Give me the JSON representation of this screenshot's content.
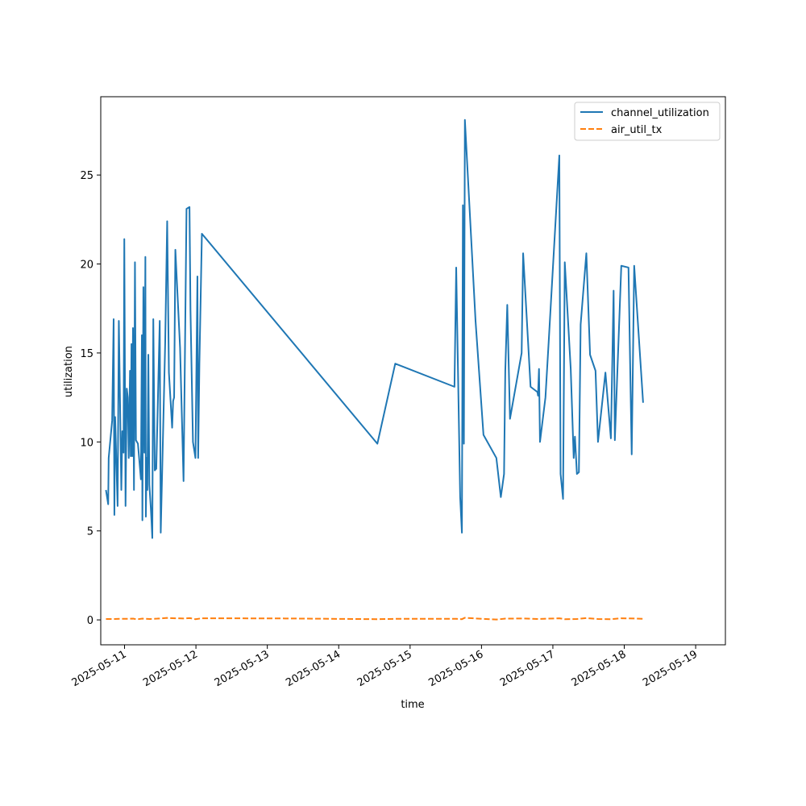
{
  "chart_data": {
    "type": "line",
    "title": "",
    "xlabel": "time",
    "ylabel": "utilization",
    "x_type": "date",
    "xlim": [
      "2025-05-10T16:00",
      "2025-05-19T10:00"
    ],
    "ylim": [
      -1.4,
      29.4
    ],
    "x_ticks": [
      "2025-05-11",
      "2025-05-12",
      "2025-05-13",
      "2025-05-14",
      "2025-05-15",
      "2025-05-16",
      "2025-05-17",
      "2025-05-18",
      "2025-05-19"
    ],
    "y_ticks": [
      0,
      5,
      10,
      15,
      20,
      25
    ],
    "grid": false,
    "legend": {
      "position": "top-right"
    },
    "colors": {
      "channel_utilization": "#1f77b4",
      "air_util_tx": "#ff7f0e"
    },
    "series": [
      {
        "name": "channel_utilization",
        "style": "solid",
        "points": [
          [
            "2025-05-10T17:45",
            7.3
          ],
          [
            "2025-05-10T18:30",
            6.5
          ],
          [
            "2025-05-10T18:40",
            9.1
          ],
          [
            "2025-05-10T19:50",
            11.2
          ],
          [
            "2025-05-10T20:20",
            16.9
          ],
          [
            "2025-05-10T20:35",
            5.9
          ],
          [
            "2025-05-10T20:50",
            11.4
          ],
          [
            "2025-05-10T21:40",
            6.4
          ],
          [
            "2025-05-10T22:05",
            16.8
          ],
          [
            "2025-05-10T22:55",
            7.3
          ],
          [
            "2025-05-10T23:15",
            10.6
          ],
          [
            "2025-05-10T23:40",
            9.4
          ],
          [
            "2025-05-10T23:55",
            21.4
          ],
          [
            "2025-05-11T00:20",
            6.4
          ],
          [
            "2025-05-11T00:45",
            13.0
          ],
          [
            "2025-05-11T01:05",
            12.5
          ],
          [
            "2025-05-11T01:25",
            9.1
          ],
          [
            "2025-05-11T01:50",
            14.0
          ],
          [
            "2025-05-11T02:05",
            9.2
          ],
          [
            "2025-05-11T02:20",
            15.5
          ],
          [
            "2025-05-11T02:35",
            9.2
          ],
          [
            "2025-05-11T02:50",
            16.4
          ],
          [
            "2025-05-11T03:10",
            7.3
          ],
          [
            "2025-05-11T03:30",
            20.1
          ],
          [
            "2025-05-11T03:50",
            10.1
          ],
          [
            "2025-05-11T04:30",
            9.9
          ],
          [
            "2025-05-11T05:30",
            7.9
          ],
          [
            "2025-05-11T05:50",
            16.0
          ],
          [
            "2025-05-11T06:00",
            5.6
          ],
          [
            "2025-05-11T06:20",
            18.7
          ],
          [
            "2025-05-11T06:40",
            9.4
          ],
          [
            "2025-05-11T07:00",
            20.4
          ],
          [
            "2025-05-11T07:10",
            5.8
          ],
          [
            "2025-05-11T07:25",
            9.1
          ],
          [
            "2025-05-11T07:40",
            7.3
          ],
          [
            "2025-05-11T08:00",
            14.9
          ],
          [
            "2025-05-11T08:20",
            7.6
          ],
          [
            "2025-05-11T08:50",
            6.3
          ],
          [
            "2025-05-11T09:05",
            5.5
          ],
          [
            "2025-05-11T09:20",
            4.6
          ],
          [
            "2025-05-11T09:40",
            16.9
          ],
          [
            "2025-05-11T10:10",
            8.4
          ],
          [
            "2025-05-11T10:40",
            8.5
          ],
          [
            "2025-05-11T11:50",
            16.8
          ],
          [
            "2025-05-11T12:10",
            4.9
          ],
          [
            "2025-05-11T13:40",
            15.6
          ],
          [
            "2025-05-11T14:20",
            22.4
          ],
          [
            "2025-05-11T14:55",
            13.9
          ],
          [
            "2025-05-11T16:00",
            10.8
          ],
          [
            "2025-05-11T16:20",
            12.3
          ],
          [
            "2025-05-11T16:40",
            12.5
          ],
          [
            "2025-05-11T17:05",
            20.8
          ],
          [
            "2025-05-11T18:40",
            15.3
          ],
          [
            "2025-05-11T19:50",
            7.8
          ],
          [
            "2025-05-11T20:50",
            23.1
          ],
          [
            "2025-05-11T21:50",
            23.2
          ],
          [
            "2025-05-11T22:10",
            17.4
          ],
          [
            "2025-05-11T23:00",
            10.0
          ],
          [
            "2025-05-11T23:50",
            9.1
          ],
          [
            "2025-05-12T00:30",
            19.3
          ],
          [
            "2025-05-12T00:45",
            9.1
          ],
          [
            "2025-05-12T01:10",
            14.4
          ],
          [
            "2025-05-12T02:00",
            21.7
          ],
          [
            "2025-05-14T13:00",
            9.9
          ],
          [
            "2025-05-14T19:00",
            14.4
          ],
          [
            "2025-05-15T14:55",
            13.1
          ],
          [
            "2025-05-15T15:30",
            19.8
          ],
          [
            "2025-05-15T16:50",
            6.9
          ],
          [
            "2025-05-15T17:25",
            4.9
          ],
          [
            "2025-05-15T17:45",
            23.3
          ],
          [
            "2025-05-15T18:05",
            9.9
          ],
          [
            "2025-05-15T18:25",
            28.1
          ],
          [
            "2025-05-15T22:00",
            16.8
          ],
          [
            "2025-05-16T00:40",
            10.4
          ],
          [
            "2025-05-16T05:00",
            9.1
          ],
          [
            "2025-05-16T06:30",
            6.9
          ],
          [
            "2025-05-16T07:35",
            8.2
          ],
          [
            "2025-05-16T08:00",
            14.0
          ],
          [
            "2025-05-16T08:40",
            17.7
          ],
          [
            "2025-05-16T09:35",
            11.3
          ],
          [
            "2025-05-16T13:30",
            15.0
          ],
          [
            "2025-05-16T14:00",
            20.6
          ],
          [
            "2025-05-16T16:30",
            13.1
          ],
          [
            "2025-05-16T18:50",
            12.8
          ],
          [
            "2025-05-16T19:00",
            12.6
          ],
          [
            "2025-05-16T19:20",
            14.1
          ],
          [
            "2025-05-16T19:40",
            10.0
          ],
          [
            "2025-05-16T21:30",
            12.5
          ],
          [
            "2025-05-16T22:35",
            15.6
          ],
          [
            "2025-05-17T02:10",
            26.1
          ],
          [
            "2025-05-17T02:35",
            8.2
          ],
          [
            "2025-05-17T03:25",
            6.8
          ],
          [
            "2025-05-17T04:00",
            20.1
          ],
          [
            "2025-05-17T06:00",
            14.1
          ],
          [
            "2025-05-17T07:00",
            9.1
          ],
          [
            "2025-05-17T07:25",
            10.3
          ],
          [
            "2025-05-17T08:05",
            8.2
          ],
          [
            "2025-05-17T08:45",
            8.3
          ],
          [
            "2025-05-17T09:20",
            16.6
          ],
          [
            "2025-05-17T11:15",
            20.6
          ],
          [
            "2025-05-17T12:30",
            14.9
          ],
          [
            "2025-05-17T14:20",
            14.0
          ],
          [
            "2025-05-17T15:10",
            10.0
          ],
          [
            "2025-05-17T17:40",
            13.9
          ],
          [
            "2025-05-17T19:30",
            10.2
          ],
          [
            "2025-05-17T20:25",
            18.5
          ],
          [
            "2025-05-17T20:50",
            10.1
          ],
          [
            "2025-05-17T23:00",
            19.9
          ],
          [
            "2025-05-18T01:25",
            19.8
          ],
          [
            "2025-05-18T02:30",
            9.3
          ],
          [
            "2025-05-18T03:20",
            19.9
          ],
          [
            "2025-05-18T06:20",
            12.2
          ]
        ]
      },
      {
        "name": "air_util_tx",
        "style": "dashed",
        "points": [
          [
            "2025-05-10T17:45",
            0.05
          ],
          [
            "2025-05-10T20:00",
            0.05
          ],
          [
            "2025-05-10T22:30",
            0.06
          ],
          [
            "2025-05-11T00:30",
            0.06
          ],
          [
            "2025-05-11T03:00",
            0.07
          ],
          [
            "2025-05-11T04:00",
            0.03
          ],
          [
            "2025-05-11T06:00",
            0.07
          ],
          [
            "2025-05-11T08:30",
            0.05
          ],
          [
            "2025-05-11T11:00",
            0.07
          ],
          [
            "2025-05-11T14:20",
            0.11
          ],
          [
            "2025-05-11T17:00",
            0.09
          ],
          [
            "2025-05-11T20:00",
            0.08
          ],
          [
            "2025-05-11T22:00",
            0.1
          ],
          [
            "2025-05-11T23:50",
            0.04
          ],
          [
            "2025-05-12T02:00",
            0.09
          ],
          [
            "2025-05-12T08:00",
            0.09
          ],
          [
            "2025-05-13T06:00",
            0.08
          ],
          [
            "2025-05-14T13:00",
            0.04
          ],
          [
            "2025-05-14T19:00",
            0.06
          ],
          [
            "2025-05-15T15:30",
            0.06
          ],
          [
            "2025-05-15T17:25",
            0.04
          ],
          [
            "2025-05-15T18:25",
            0.12
          ],
          [
            "2025-05-15T22:00",
            0.08
          ],
          [
            "2025-05-16T05:00",
            0.02
          ],
          [
            "2025-05-16T08:00",
            0.07
          ],
          [
            "2025-05-16T14:00",
            0.08
          ],
          [
            "2025-05-16T19:00",
            0.05
          ],
          [
            "2025-05-17T02:10",
            0.09
          ],
          [
            "2025-05-17T04:00",
            0.04
          ],
          [
            "2025-05-17T08:05",
            0.05
          ],
          [
            "2025-05-17T11:15",
            0.1
          ],
          [
            "2025-05-17T15:10",
            0.05
          ],
          [
            "2025-05-17T19:30",
            0.04
          ],
          [
            "2025-05-17T23:00",
            0.09
          ],
          [
            "2025-05-18T03:20",
            0.08
          ],
          [
            "2025-05-18T06:20",
            0.06
          ]
        ]
      }
    ]
  }
}
